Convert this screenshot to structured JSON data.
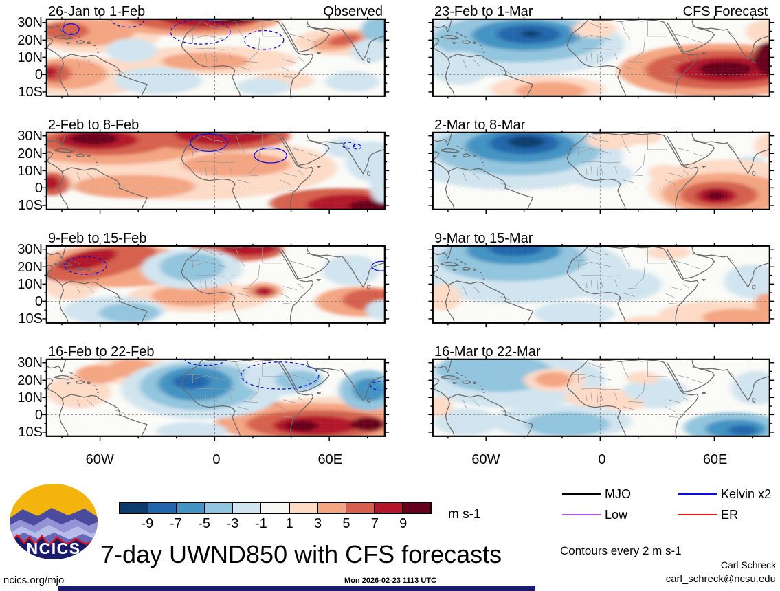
{
  "page": {
    "title": "7-day UWND850 with CFS forecasts",
    "logo_text": "NCICS",
    "footer_left": "ncics.org/mjo",
    "footer_center": "Mon 2026-02-23 1113 UTC",
    "footer_right": "carl_schreck@ncsu.edu",
    "credit": "Carl Schreck",
    "bottom_bar_color": "#1b1b6e"
  },
  "chart_data": {
    "type": "heatmap",
    "subtype": "filled-contour-map-grid",
    "title": "7-day UWND850 with CFS forecasts",
    "units": "m s-1",
    "contour_note": "Contours every 2 m s-1",
    "column_labels": [
      "Observed",
      "CFS Forecast"
    ],
    "lat_ticks": [
      "30N",
      "20N",
      "10N",
      "0",
      "10S"
    ],
    "lon_ticks": [
      "60W",
      "0",
      "60E"
    ],
    "lon_range_deg": [
      -88,
      89
    ],
    "lat_range_deg": [
      32,
      -12.4
    ],
    "colorbar": {
      "label": "m s-1",
      "tick_labels": [
        "-9",
        "-7",
        "-5",
        "-3",
        "-1",
        "1",
        "3",
        "5",
        "7",
        "9"
      ],
      "colors": [
        "#0c3c6e",
        "#2166ac",
        "#4393c3",
        "#92c5de",
        "#d1e5f0",
        "#f7f7f4",
        "#fddbc7",
        "#f4a582",
        "#d6604d",
        "#b2182b",
        "#67001f"
      ]
    },
    "legend": [
      {
        "label": "MJO",
        "color": "#000000"
      },
      {
        "label": "Kelvin x2",
        "color": "#0b0bec"
      },
      {
        "label": "Low",
        "color": "#b252f5"
      },
      {
        "label": "ER",
        "color": "#f31111"
      }
    ],
    "panels": [
      {
        "title": "26-Jan to 1-Feb",
        "corner_label": "Observed",
        "col": 0,
        "row": 0,
        "features": [
          [
            100,
            170,
            200,
            60,
            6
          ],
          [
            60,
            162,
            120,
            45,
            7
          ],
          [
            25,
            160,
            48,
            28,
            8
          ],
          [
            8,
            158,
            26,
            16,
            9
          ],
          [
            140,
            45,
            200,
            55,
            6
          ],
          [
            110,
            40,
            150,
            40,
            7
          ],
          [
            55,
            35,
            70,
            26,
            8
          ],
          [
            430,
            0,
            260,
            50,
            7
          ],
          [
            440,
            -5,
            200,
            40,
            8
          ],
          [
            480,
            -8,
            150,
            32,
            9
          ],
          [
            540,
            -12,
            80,
            24,
            10
          ],
          [
            480,
            122,
            260,
            42,
            6
          ],
          [
            470,
            125,
            130,
            26,
            7
          ],
          [
            870,
            68,
            140,
            40,
            6
          ],
          [
            875,
            64,
            90,
            26,
            7,
            -10
          ],
          [
            880,
            62,
            50,
            15,
            8,
            -10
          ],
          [
            700,
            182,
            90,
            28,
            6
          ],
          [
            250,
            92,
            75,
            35,
            4
          ],
          [
            330,
            182,
            130,
            40,
            4
          ],
          [
            640,
            200,
            80,
            25,
            4
          ],
          [
            905,
            185,
            80,
            30,
            4
          ],
          [
            985,
            32,
            55,
            38,
            3
          ],
          [
            955,
            95,
            55,
            35,
            4
          ]
        ],
        "wave_contours": [
          [
            455,
            38,
            88,
            36,
            "d"
          ],
          [
            643,
            62,
            58,
            28,
            "d"
          ],
          [
            240,
            2,
            48,
            22,
            "d"
          ],
          [
            72,
            30,
            24,
            16,
            "s"
          ]
        ]
      },
      {
        "title": "23-Feb to 1-Mar",
        "corner_label": "CFS Forecast",
        "col": 1,
        "row": 0,
        "features": [
          [
            230,
            75,
            340,
            95,
            4
          ],
          [
            255,
            58,
            255,
            70,
            3
          ],
          [
            275,
            48,
            160,
            45,
            2
          ],
          [
            285,
            45,
            95,
            28,
            1
          ],
          [
            292,
            44,
            30,
            10,
            0
          ],
          [
            80,
            145,
            85,
            50,
            4
          ],
          [
            860,
            228,
            100,
            24,
            2
          ],
          [
            890,
            226,
            65,
            18,
            1
          ],
          [
            480,
            30,
            65,
            26,
            6
          ],
          [
            985,
            38,
            55,
            35,
            6
          ],
          [
            340,
            208,
            170,
            40,
            6
          ],
          [
            350,
            212,
            105,
            26,
            7
          ],
          [
            700,
            132,
            65,
            30,
            7
          ],
          [
            700,
            130,
            36,
            18,
            9
          ],
          [
            850,
            152,
            300,
            80,
            7
          ],
          [
            860,
            150,
            230,
            58,
            8
          ],
          [
            880,
            150,
            160,
            38,
            9
          ],
          [
            870,
            148,
            80,
            22,
            10
          ],
          [
            998,
            118,
            45,
            50,
            10
          ]
        ],
        "wave_contours": []
      },
      {
        "title": "2-Feb to 8-Feb",
        "corner_label": "",
        "col": 0,
        "row": 1,
        "features": [
          [
            400,
            105,
            460,
            95,
            6
          ],
          [
            190,
            35,
            280,
            60,
            7
          ],
          [
            170,
            28,
            190,
            40,
            8
          ],
          [
            150,
            22,
            120,
            28,
            9
          ],
          [
            140,
            18,
            70,
            18,
            10
          ],
          [
            500,
            10,
            220,
            45,
            8
          ],
          [
            520,
            5,
            140,
            32,
            9
          ],
          [
            260,
            160,
            180,
            35,
            7
          ],
          [
            15,
            152,
            55,
            35,
            8
          ],
          [
            10,
            150,
            30,
            20,
            9
          ],
          [
            560,
            95,
            160,
            35,
            7
          ],
          [
            870,
            210,
            210,
            45,
            8
          ],
          [
            900,
            215,
            130,
            32,
            9
          ],
          [
            955,
            218,
            60,
            18,
            10
          ],
          [
            960,
            85,
            75,
            60,
            4
          ],
          [
            880,
            45,
            55,
            30,
            4
          ],
          [
            995,
            150,
            40,
            60,
            4
          ]
        ],
        "wave_contours": [
          [
            480,
            30,
            55,
            26,
            "s"
          ],
          [
            662,
            68,
            48,
            22,
            "s"
          ],
          [
            893,
            38,
            18,
            9,
            "d"
          ],
          [
            918,
            42,
            12,
            7,
            "d"
          ]
        ]
      },
      {
        "title": "2-Mar to 8-Mar",
        "corner_label": "",
        "col": 1,
        "row": 1,
        "features": [
          [
            235,
            70,
            330,
            100,
            4
          ],
          [
            250,
            52,
            250,
            75,
            3
          ],
          [
            262,
            40,
            165,
            50,
            2
          ],
          [
            272,
            32,
            105,
            32,
            1
          ],
          [
            278,
            28,
            55,
            17,
            0
          ],
          [
            500,
            125,
            95,
            40,
            4
          ],
          [
            995,
            222,
            75,
            22,
            3
          ],
          [
            940,
            110,
            60,
            40,
            4
          ],
          [
            530,
            25,
            75,
            25,
            6
          ],
          [
            625,
            15,
            55,
            20,
            6
          ],
          [
            690,
            120,
            50,
            25,
            6
          ],
          [
            995,
            40,
            40,
            35,
            6
          ],
          [
            880,
            165,
            240,
            85,
            6
          ],
          [
            865,
            180,
            185,
            60,
            7
          ],
          [
            850,
            185,
            115,
            40,
            8
          ],
          [
            842,
            187,
            60,
            24,
            9
          ],
          [
            842,
            187,
            30,
            12,
            10
          ]
        ],
        "wave_contours": []
      },
      {
        "title": "9-Feb to 15-Feb",
        "corner_label": "",
        "col": 0,
        "row": 2,
        "features": [
          [
            70,
            120,
            80,
            40,
            6
          ],
          [
            210,
            60,
            250,
            62,
            7
          ],
          [
            160,
            52,
            170,
            42,
            8,
            -12
          ],
          [
            120,
            40,
            90,
            26,
            9,
            -12
          ],
          [
            560,
            12,
            140,
            34,
            8
          ],
          [
            600,
            6,
            80,
            22,
            9
          ],
          [
            450,
            152,
            210,
            45,
            6
          ],
          [
            430,
            148,
            120,
            32,
            7
          ],
          [
            640,
            133,
            55,
            24,
            7
          ],
          [
            643,
            135,
            30,
            14,
            9
          ],
          [
            935,
            165,
            140,
            45,
            7
          ],
          [
            960,
            160,
            85,
            32,
            8
          ],
          [
            430,
            68,
            150,
            60,
            4
          ],
          [
            430,
            62,
            95,
            42,
            3
          ],
          [
            200,
            192,
            150,
            42,
            4
          ],
          [
            245,
            198,
            90,
            28,
            3
          ],
          [
            900,
            72,
            85,
            45,
            4
          ],
          [
            995,
            190,
            50,
            30,
            4
          ]
        ],
        "wave_contours": [
          [
            115,
            58,
            62,
            26,
            "d"
          ],
          [
            990,
            60,
            28,
            14,
            "s"
          ]
        ]
      },
      {
        "title": "9-Mar to 15-Mar",
        "corner_label": "",
        "col": 1,
        "row": 2,
        "features": [
          [
            250,
            70,
            330,
            100,
            4
          ],
          [
            235,
            40,
            220,
            65,
            3
          ],
          [
            240,
            15,
            140,
            40,
            2
          ],
          [
            245,
            8,
            80,
            22,
            1
          ],
          [
            550,
            115,
            130,
            50,
            4
          ],
          [
            950,
            105,
            85,
            50,
            4
          ],
          [
            420,
            200,
            120,
            35,
            4
          ],
          [
            30,
            152,
            55,
            40,
            6
          ],
          [
            700,
            20,
            65,
            20,
            6
          ],
          [
            860,
            205,
            190,
            42,
            6
          ],
          [
            905,
            212,
            105,
            26,
            7
          ],
          [
            995,
            170,
            40,
            30,
            7
          ],
          [
            640,
            228,
            80,
            20,
            6
          ]
        ],
        "wave_contours": []
      },
      {
        "title": "16-Feb to 22-Feb",
        "corner_label": "",
        "col": 0,
        "row": 3,
        "features": [
          [
            870,
            180,
            300,
            70,
            6
          ],
          [
            250,
            32,
            115,
            45,
            6
          ],
          [
            252,
            28,
            72,
            28,
            7
          ],
          [
            95,
            95,
            95,
            50,
            6
          ],
          [
            150,
            45,
            65,
            28,
            7
          ],
          [
            630,
            147,
            85,
            30,
            7
          ],
          [
            640,
            142,
            46,
            20,
            9
          ],
          [
            790,
            188,
            290,
            58,
            7
          ],
          [
            800,
            192,
            210,
            42,
            8
          ],
          [
            795,
            196,
            125,
            28,
            9
          ],
          [
            755,
            197,
            48,
            16,
            10
          ],
          [
            950,
            192,
            50,
            20,
            10
          ],
          [
            460,
            88,
            240,
            90,
            4
          ],
          [
            450,
            80,
            175,
            70,
            3
          ],
          [
            440,
            73,
            110,
            50,
            2
          ],
          [
            428,
            66,
            55,
            22,
            1
          ],
          [
            700,
            58,
            120,
            48,
            4
          ],
          [
            745,
            62,
            70,
            28,
            3
          ],
          [
            950,
            92,
            85,
            60,
            3
          ],
          [
            955,
            90,
            50,
            35,
            2
          ],
          [
            430,
            212,
            105,
            26,
            4
          ]
        ],
        "wave_contours": [
          [
            470,
            -2,
            62,
            20,
            "d"
          ],
          [
            690,
            48,
            115,
            40,
            "d"
          ],
          [
            988,
            78,
            30,
            13,
            "d"
          ]
        ]
      },
      {
        "title": "16-Mar to 22-Mar",
        "corner_label": "",
        "col": 1,
        "row": 3,
        "features": [
          [
            240,
            60,
            270,
            85,
            4
          ],
          [
            195,
            42,
            165,
            55,
            3
          ],
          [
            90,
            30,
            80,
            35,
            3
          ],
          [
            380,
            185,
            210,
            50,
            4
          ],
          [
            400,
            192,
            125,
            35,
            3
          ],
          [
            960,
            85,
            75,
            50,
            4
          ],
          [
            100,
            185,
            95,
            40,
            4
          ],
          [
            660,
            100,
            100,
            45,
            4
          ],
          [
            890,
            202,
            145,
            45,
            3
          ],
          [
            900,
            206,
            90,
            28,
            2
          ],
          [
            920,
            210,
            45,
            14,
            1
          ],
          [
            362,
            62,
            92,
            34,
            6
          ],
          [
            358,
            60,
            55,
            22,
            7
          ],
          [
            485,
            112,
            95,
            30,
            6
          ],
          [
            565,
            132,
            62,
            20,
            6
          ],
          [
            625,
            55,
            50,
            18,
            6
          ],
          [
            20,
            140,
            40,
            30,
            6
          ]
        ],
        "wave_contours": []
      }
    ]
  }
}
